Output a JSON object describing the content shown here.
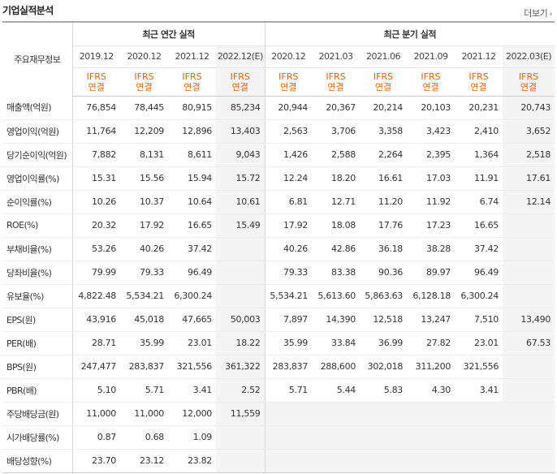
{
  "title": "기업실적분석",
  "more_label": "더보기",
  "row_header": "주요재무정보",
  "annual_group": "최근 연간 실적",
  "quarter_group": "최근 분기 실적",
  "annual_periods": [
    "2019.12",
    "2020.12",
    "2021.12",
    "2022.12(E)"
  ],
  "quarter_periods": [
    "2020.12",
    "2021.03",
    "2021.06",
    "2021.09",
    "2021.12",
    "2022.03(E)"
  ],
  "ifrs_top": "IFRS",
  "ifrs_bottom": "연결",
  "rows": [
    {
      "label": "매출액(억원)",
      "annual": [
        "76,854",
        "78,445",
        "80,915",
        "85,234"
      ],
      "quarter": [
        "20,944",
        "20,367",
        "20,214",
        "20,103",
        "20,231",
        "20,743"
      ]
    },
    {
      "label": "영업이익(억원)",
      "annual": [
        "11,764",
        "12,209",
        "12,896",
        "13,403"
      ],
      "quarter": [
        "2,563",
        "3,706",
        "3,358",
        "3,423",
        "2,410",
        "3,652"
      ]
    },
    {
      "label": "당기순이익(억원)",
      "annual": [
        "7,882",
        "8,131",
        "8,611",
        "9,043"
      ],
      "quarter": [
        "1,426",
        "2,588",
        "2,264",
        "2,395",
        "1,364",
        "2,518"
      ]
    },
    {
      "label": "영업이익률(%)",
      "annual": [
        "15.31",
        "15.56",
        "15.94",
        "15.72"
      ],
      "quarter": [
        "12.24",
        "18.20",
        "16.61",
        "17.03",
        "11.91",
        "17.61"
      ]
    },
    {
      "label": "순이익률(%)",
      "annual": [
        "10.26",
        "10.37",
        "10.64",
        "10.61"
      ],
      "quarter": [
        "6.81",
        "12.71",
        "11.20",
        "11.92",
        "6.74",
        "12.14"
      ]
    },
    {
      "label": "ROE(%)",
      "annual": [
        "20.32",
        "17.92",
        "16.65",
        "15.49"
      ],
      "quarter": [
        "17.92",
        "18.08",
        "17.76",
        "17.23",
        "16.65",
        ""
      ]
    },
    {
      "label": "부채비율(%)",
      "annual": [
        "53.26",
        "40.26",
        "37.42",
        ""
      ],
      "quarter": [
        "40.26",
        "42.86",
        "36.18",
        "38.28",
        "37.42",
        ""
      ]
    },
    {
      "label": "당좌비율(%)",
      "annual": [
        "79.99",
        "79.33",
        "96.49",
        ""
      ],
      "quarter": [
        "79.33",
        "83.38",
        "90.36",
        "89.97",
        "96.49",
        ""
      ]
    },
    {
      "label": "유보율(%)",
      "annual": [
        "4,822.48",
        "5,534.21",
        "6,300.24",
        ""
      ],
      "quarter": [
        "5,534.21",
        "5,613.60",
        "5,863.63",
        "6,128.18",
        "6,300.24",
        ""
      ]
    },
    {
      "label": "EPS(원)",
      "annual": [
        "43,916",
        "45,018",
        "47,665",
        "50,003"
      ],
      "quarter": [
        "7,897",
        "14,390",
        "12,518",
        "13,247",
        "7,510",
        "13,490"
      ]
    },
    {
      "label": "PER(배)",
      "annual": [
        "28.71",
        "35.99",
        "23.01",
        "18.22"
      ],
      "quarter": [
        "35.99",
        "33.84",
        "36.99",
        "27.82",
        "23.01",
        "67.53"
      ]
    },
    {
      "label": "BPS(원)",
      "annual": [
        "247,477",
        "283,837",
        "321,556",
        "361,322"
      ],
      "quarter": [
        "283,837",
        "288,600",
        "302,018",
        "311,200",
        "321,556",
        ""
      ]
    },
    {
      "label": "PBR(배)",
      "annual": [
        "5.10",
        "5.71",
        "3.41",
        "2.52"
      ],
      "quarter": [
        "5.71",
        "5.44",
        "5.83",
        "4.30",
        "3.41",
        ""
      ]
    },
    {
      "label": "주당배당금(원)",
      "annual": [
        "11,000",
        "11,000",
        "12,000",
        "11,559"
      ],
      "quarter": [
        "",
        "",
        "",
        "",
        "",
        ""
      ]
    },
    {
      "label": "시가배당률(%)",
      "annual": [
        "0.87",
        "0.68",
        "1.09",
        ""
      ],
      "quarter": [
        "",
        "",
        "",
        "",
        "",
        ""
      ]
    },
    {
      "label": "배당성향(%)",
      "annual": [
        "23.70",
        "23.12",
        "23.82",
        ""
      ],
      "quarter": [
        "",
        "",
        "",
        "",
        "",
        ""
      ]
    }
  ],
  "separator_after_rows": [
    2,
    5,
    8,
    12
  ],
  "accent_color": "#e8620c"
}
